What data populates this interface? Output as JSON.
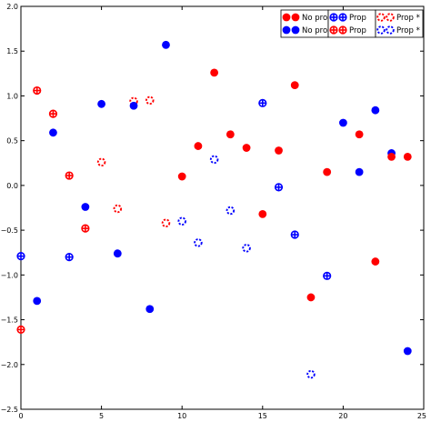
{
  "chart_data": {
    "type": "scatter",
    "title": "",
    "xlabel": "",
    "ylabel": "",
    "xlim": [
      0,
      25
    ],
    "ylim": [
      -2.5,
      2.0
    ],
    "xticks": [
      0,
      5,
      10,
      15,
      20,
      25
    ],
    "xtick_labels": [
      "0",
      "5",
      "10",
      "15",
      "20",
      "25"
    ],
    "yticks": [
      -2.5,
      -2.0,
      -1.5,
      -1.0,
      -0.5,
      0.0,
      0.5,
      1.0,
      1.5,
      2.0
    ],
    "ytick_labels": [
      "−2.5",
      "−2.0",
      "−1.5",
      "−1.0",
      "−0.5",
      "0.0",
      "0.5",
      "1.0",
      "1.5",
      "2.0"
    ],
    "grid": false,
    "legend_placement": "top-right",
    "legend_columns": [
      [
        {
          "label": "No prop",
          "marker": "filled",
          "color": "#ff0000"
        },
        {
          "label": "No prop",
          "marker": "filled",
          "color": "#0000ff"
        }
      ],
      [
        {
          "label": "Prop",
          "marker": "plus",
          "color": "#0000ff"
        },
        {
          "label": "Prop",
          "marker": "plus",
          "color": "#ff0000"
        }
      ],
      [
        {
          "label": "Prop *",
          "marker": "dashed",
          "color": "#ff0000"
        },
        {
          "label": "Prop *",
          "marker": "dashed",
          "color": "#0000ff"
        }
      ]
    ],
    "points": [
      {
        "x": 0,
        "y": -1.61,
        "marker": "plus",
        "color": "#ff0000"
      },
      {
        "x": 0,
        "y": -0.79,
        "marker": "plus",
        "color": "#0000ff"
      },
      {
        "x": 1,
        "y": 1.06,
        "marker": "plus",
        "color": "#ff0000"
      },
      {
        "x": 1,
        "y": -1.29,
        "marker": "filled",
        "color": "#0000ff"
      },
      {
        "x": 2,
        "y": 0.8,
        "marker": "plus",
        "color": "#ff0000"
      },
      {
        "x": 2,
        "y": 0.59,
        "marker": "filled",
        "color": "#0000ff"
      },
      {
        "x": 3,
        "y": 0.11,
        "marker": "plus",
        "color": "#ff0000"
      },
      {
        "x": 3,
        "y": -0.8,
        "marker": "plus",
        "color": "#0000ff"
      },
      {
        "x": 4,
        "y": -0.48,
        "marker": "plus",
        "color": "#ff0000"
      },
      {
        "x": 4,
        "y": -0.24,
        "marker": "filled",
        "color": "#0000ff"
      },
      {
        "x": 5,
        "y": 0.91,
        "marker": "filled",
        "color": "#0000ff"
      },
      {
        "x": 5,
        "y": 0.26,
        "marker": "dashed",
        "color": "#ff0000"
      },
      {
        "x": 6,
        "y": -0.26,
        "marker": "dashed",
        "color": "#ff0000"
      },
      {
        "x": 6,
        "y": -0.76,
        "marker": "filled",
        "color": "#0000ff"
      },
      {
        "x": 7,
        "y": 0.94,
        "marker": "dashed",
        "color": "#ff0000"
      },
      {
        "x": 7,
        "y": 0.89,
        "marker": "filled",
        "color": "#0000ff"
      },
      {
        "x": 8,
        "y": 0.95,
        "marker": "dashed",
        "color": "#ff0000"
      },
      {
        "x": 8,
        "y": -1.38,
        "marker": "filled",
        "color": "#0000ff"
      },
      {
        "x": 9,
        "y": 1.57,
        "marker": "filled",
        "color": "#0000ff"
      },
      {
        "x": 9,
        "y": -0.42,
        "marker": "dashed",
        "color": "#ff0000"
      },
      {
        "x": 10,
        "y": 0.1,
        "marker": "filled",
        "color": "#ff0000"
      },
      {
        "x": 10,
        "y": -0.4,
        "marker": "dashed",
        "color": "#0000ff"
      },
      {
        "x": 11,
        "y": 0.44,
        "marker": "filled",
        "color": "#ff0000"
      },
      {
        "x": 11,
        "y": -0.64,
        "marker": "dashed",
        "color": "#0000ff"
      },
      {
        "x": 12,
        "y": 1.26,
        "marker": "filled",
        "color": "#ff0000"
      },
      {
        "x": 12,
        "y": 0.29,
        "marker": "dashed",
        "color": "#0000ff"
      },
      {
        "x": 13,
        "y": 0.57,
        "marker": "filled",
        "color": "#ff0000"
      },
      {
        "x": 13,
        "y": -0.28,
        "marker": "dashed",
        "color": "#0000ff"
      },
      {
        "x": 14,
        "y": 0.42,
        "marker": "filled",
        "color": "#ff0000"
      },
      {
        "x": 14,
        "y": -0.7,
        "marker": "dashed",
        "color": "#0000ff"
      },
      {
        "x": 15,
        "y": 0.92,
        "marker": "plus",
        "color": "#0000ff"
      },
      {
        "x": 15,
        "y": -0.32,
        "marker": "filled",
        "color": "#ff0000"
      },
      {
        "x": 16,
        "y": 0.39,
        "marker": "filled",
        "color": "#ff0000"
      },
      {
        "x": 16,
        "y": -0.02,
        "marker": "plus",
        "color": "#0000ff"
      },
      {
        "x": 17,
        "y": 1.12,
        "marker": "filled",
        "color": "#ff0000"
      },
      {
        "x": 17,
        "y": -0.55,
        "marker": "plus",
        "color": "#0000ff"
      },
      {
        "x": 18,
        "y": -1.25,
        "marker": "filled",
        "color": "#ff0000"
      },
      {
        "x": 18,
        "y": -2.11,
        "marker": "dashed",
        "color": "#0000ff"
      },
      {
        "x": 19,
        "y": 0.15,
        "marker": "filled",
        "color": "#ff0000"
      },
      {
        "x": 19,
        "y": -1.01,
        "marker": "plus",
        "color": "#0000ff"
      },
      {
        "x": 20,
        "y": 0.7,
        "marker": "filled",
        "color": "#0000ff"
      },
      {
        "x": 21,
        "y": 0.57,
        "marker": "filled",
        "color": "#ff0000"
      },
      {
        "x": 21,
        "y": 0.15,
        "marker": "filled",
        "color": "#0000ff"
      },
      {
        "x": 22,
        "y": 0.84,
        "marker": "filled",
        "color": "#0000ff"
      },
      {
        "x": 22,
        "y": -0.85,
        "marker": "filled",
        "color": "#ff0000"
      },
      {
        "x": 23,
        "y": 0.36,
        "marker": "filled",
        "color": "#0000ff"
      },
      {
        "x": 23,
        "y": 0.32,
        "marker": "filled",
        "color": "#ff0000"
      },
      {
        "x": 24,
        "y": 0.32,
        "marker": "filled",
        "color": "#ff0000"
      },
      {
        "x": 24,
        "y": -1.85,
        "marker": "filled",
        "color": "#0000ff"
      }
    ]
  }
}
